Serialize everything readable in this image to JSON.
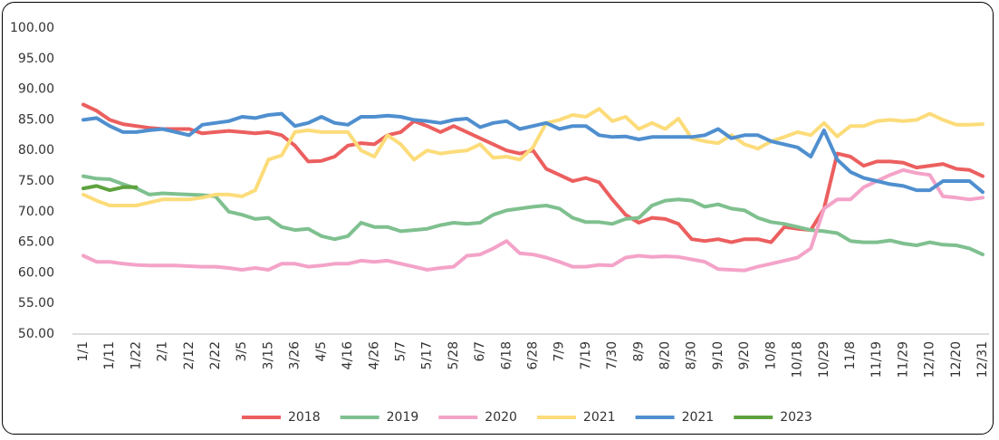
{
  "chart_data": {
    "type": "line",
    "categories": [
      "1/1",
      null,
      "1/11",
      null,
      "1/22",
      null,
      "2/1",
      null,
      "2/12",
      null,
      "2/22",
      null,
      "3/5",
      null,
      "3/15",
      null,
      "3/26",
      null,
      "4/5",
      null,
      "4/16",
      null,
      "4/26",
      null,
      "5/7",
      null,
      "5/17",
      null,
      "5/28",
      null,
      "6/7",
      null,
      "6/18",
      null,
      "6/28",
      null,
      "7/9",
      null,
      "7/19",
      null,
      "7/30",
      null,
      "8/9",
      null,
      "8/20",
      null,
      "8/30",
      null,
      "9/10",
      null,
      "9/20",
      null,
      "10/8",
      null,
      "10/18",
      null,
      "10/29",
      null,
      "11/8",
      null,
      "11/19",
      null,
      "11/29",
      null,
      "12/10",
      null,
      "12/20",
      null,
      "12/31"
    ],
    "series": [
      {
        "name": "2018",
        "color": "#ec5f5f",
        "values": [
          87.5,
          86.5,
          85,
          84.3,
          84,
          83.7,
          83.5,
          83.5,
          83.5,
          82.8,
          83,
          83.2,
          83,
          82.8,
          83,
          82.5,
          80.8,
          78.2,
          78.3,
          79,
          80.8,
          81.2,
          81,
          82.5,
          83,
          84.8,
          84,
          83,
          84,
          83,
          82,
          81,
          80,
          79.5,
          80,
          77,
          76,
          75,
          75.5,
          74.8,
          72,
          69.5,
          68.2,
          69,
          68.8,
          68,
          65.5,
          65.2,
          65.5,
          65,
          65.5,
          65.5,
          65,
          67.5,
          67.2,
          67,
          70.5,
          79.5,
          79,
          77.5,
          78.2,
          78.2,
          78,
          77.2,
          77.5,
          77.8,
          77,
          76.8,
          75.8
        ]
      },
      {
        "name": "2019",
        "color": "#7fc08f",
        "values": [
          75.8,
          75.4,
          75.3,
          74.5,
          73.8,
          72.8,
          73,
          72.9,
          72.8,
          72.7,
          72.5,
          70,
          69.5,
          68.8,
          69,
          67.5,
          67,
          67.2,
          66,
          65.5,
          66,
          68.2,
          67.5,
          67.5,
          66.8,
          67,
          67.2,
          67.8,
          68.2,
          68,
          68.2,
          69.5,
          70.2,
          70.5,
          70.8,
          71,
          70.5,
          69,
          68.3,
          68.3,
          68,
          68.8,
          69,
          71,
          71.8,
          72,
          71.8,
          70.8,
          71.2,
          70.5,
          70.2,
          69,
          68.3,
          68,
          67.5,
          67,
          66.8,
          66.5,
          65.2,
          65,
          65,
          65.3,
          64.8,
          64.5,
          65,
          64.6,
          64.5,
          64,
          63
        ]
      },
      {
        "name": "2020",
        "color": "#f4a3c8",
        "values": [
          62.8,
          61.8,
          61.8,
          61.5,
          61.3,
          61.2,
          61.2,
          61.2,
          61.1,
          61,
          61,
          60.8,
          60.5,
          60.8,
          60.5,
          61.5,
          61.5,
          61,
          61.2,
          61.5,
          61.5,
          62,
          61.8,
          62,
          61.5,
          61,
          60.5,
          60.8,
          61,
          62.8,
          63,
          64,
          65.2,
          63.2,
          63,
          62.5,
          61.8,
          61,
          61,
          61.3,
          61.2,
          62.5,
          62.8,
          62.6,
          62.7,
          62.6,
          62.2,
          61.8,
          60.6,
          60.5,
          60.4,
          61,
          61.5,
          62,
          62.5,
          64,
          70.5,
          72,
          72,
          74,
          75,
          76,
          76.8,
          76.3,
          76,
          72.5,
          72.3,
          72,
          72.3
        ]
      },
      {
        "name": "2021",
        "color": "#fcdc7a",
        "values": [
          72.8,
          71.8,
          71,
          71,
          71,
          71.5,
          72,
          72,
          72,
          72.3,
          72.8,
          72.8,
          72.5,
          73.5,
          78.5,
          79.2,
          83,
          83.3,
          83,
          83,
          83,
          80,
          79,
          82.5,
          81,
          78.5,
          80,
          79.5,
          79.8,
          80,
          81,
          78.8,
          79,
          78.5,
          80.5,
          84.5,
          85,
          85.8,
          85.5,
          86.8,
          84.8,
          85.5,
          83.5,
          84.5,
          83.5,
          85.2,
          82,
          81.5,
          81.2,
          82.5,
          81,
          80.3,
          81.5,
          82.2,
          83,
          82.5,
          84.5,
          82.3,
          84,
          84,
          84.8,
          85,
          84.8,
          85,
          86,
          85,
          84.2,
          84.2,
          84.3
        ]
      },
      {
        "name": "2021",
        "color": "#4f8fcf",
        "values": [
          85,
          85.3,
          84,
          83,
          83,
          83.3,
          83.5,
          83,
          82.5,
          84.2,
          84.5,
          84.8,
          85.5,
          85.3,
          85.8,
          86,
          84,
          84.5,
          85.5,
          84.5,
          84.2,
          85.5,
          85.5,
          85.7,
          85.5,
          85,
          84.8,
          84.5,
          85,
          85.2,
          83.8,
          84.5,
          84.8,
          83.5,
          84,
          84.5,
          83.5,
          84,
          84,
          82.5,
          82.2,
          82.3,
          81.8,
          82.2,
          82.2,
          82.2,
          82.2,
          82.5,
          83.5,
          82,
          82.5,
          82.5,
          81.5,
          81,
          80.5,
          79,
          83.3,
          78.5,
          76.5,
          75.5,
          75,
          74.5,
          74.2,
          73.5,
          73.5,
          75,
          75,
          75,
          73.2
        ]
      },
      {
        "name": "2023",
        "color": "#5ea23e",
        "values": [
          73.8,
          74.2,
          73.5,
          74,
          74,
          null,
          null,
          null,
          null,
          null,
          null,
          null,
          null,
          null,
          null,
          null,
          null,
          null,
          null,
          null,
          null,
          null,
          null,
          null,
          null,
          null,
          null,
          null,
          null,
          null,
          null,
          null,
          null,
          null,
          null,
          null,
          null,
          null,
          null,
          null,
          null,
          null,
          null,
          null,
          null,
          null,
          null,
          null,
          null,
          null,
          null,
          null,
          null,
          null,
          null,
          null,
          null,
          null,
          null,
          null,
          null,
          null,
          null,
          null,
          null,
          null,
          null,
          null,
          null
        ]
      }
    ],
    "ylim": [
      50,
      100
    ],
    "yticks": [
      {
        "value": 50,
        "label": "50.00"
      },
      {
        "value": 55,
        "label": "55.00"
      },
      {
        "value": 60,
        "label": "60.00"
      },
      {
        "value": 65,
        "label": "65.00"
      },
      {
        "value": 70,
        "label": "70.00"
      },
      {
        "value": 75,
        "label": "75.00"
      },
      {
        "value": 80,
        "label": "80.00"
      },
      {
        "value": 85,
        "label": "85.00"
      },
      {
        "value": 90,
        "label": "90.00"
      },
      {
        "value": 95,
        "label": "95.00"
      },
      {
        "value": 100,
        "label": "100.00"
      }
    ],
    "grid": false,
    "legend": "bottom"
  }
}
